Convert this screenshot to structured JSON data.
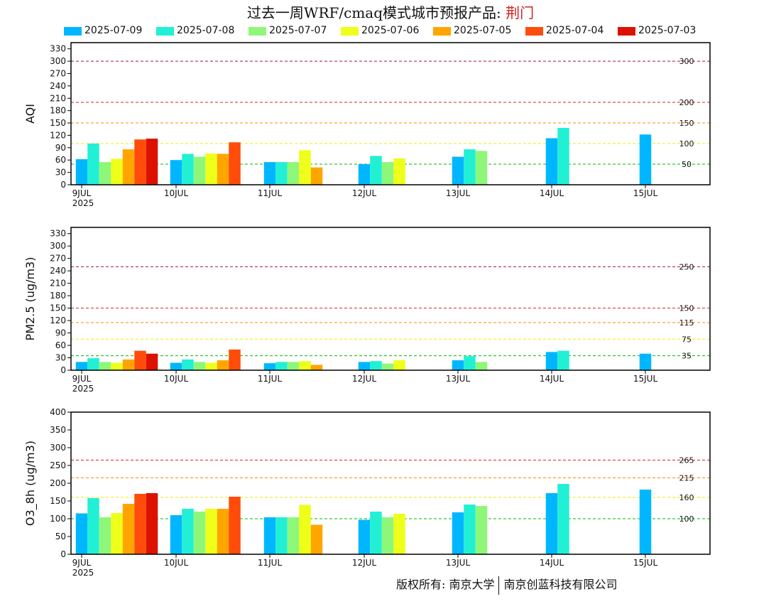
{
  "title": {
    "main": "过去一周WRF/cmaq模式城市预报产品: ",
    "city": "荆门"
  },
  "legend": [
    {
      "label": "2025-07-09",
      "color": "#00b7ff"
    },
    {
      "label": "2025-07-08",
      "color": "#22f0d4"
    },
    {
      "label": "2025-07-07",
      "color": "#8ef77a"
    },
    {
      "label": "2025-07-06",
      "color": "#eeff1a"
    },
    {
      "label": "2025-07-05",
      "color": "#ffa500"
    },
    {
      "label": "2025-07-04",
      "color": "#ff4c0a"
    },
    {
      "label": "2025-07-03",
      "color": "#dd1100"
    }
  ],
  "copyright": {
    "left": "版权所有: 南京大学",
    "right": "南京创蓝科技有限公司"
  },
  "chart_data": [
    {
      "type": "bar",
      "ylabel": "AQI",
      "ylim": [
        0,
        345
      ],
      "yticks": [
        0,
        30,
        60,
        90,
        120,
        150,
        180,
        210,
        240,
        270,
        300,
        330
      ],
      "categories": [
        "9JUL",
        "10JUL",
        "11JUL",
        "12JUL",
        "13JUL",
        "14JUL",
        "15JUL"
      ],
      "year_label": "2025",
      "thresholds": [
        {
          "value": 300,
          "label": "300",
          "color": "#aa1144"
        },
        {
          "value": 200,
          "label": "200",
          "color": "#dd2222"
        },
        {
          "value": 150,
          "label": "150",
          "color": "#ff8800"
        },
        {
          "value": 100,
          "label": "100",
          "color": "#eeee00"
        },
        {
          "value": 50,
          "label": "50",
          "color": "#00bb00"
        }
      ],
      "series": [
        {
          "name": "2025-07-09",
          "values": [
            62,
            60,
            55,
            50,
            68,
            113,
            122
          ]
        },
        {
          "name": "2025-07-08",
          "values": [
            100,
            75,
            55,
            70,
            86,
            138,
            null
          ]
        },
        {
          "name": "2025-07-07",
          "values": [
            55,
            68,
            55,
            55,
            82,
            null,
            null
          ]
        },
        {
          "name": "2025-07-06",
          "values": [
            63,
            76,
            84,
            64,
            null,
            null,
            null
          ]
        },
        {
          "name": "2025-07-05",
          "values": [
            86,
            75,
            42,
            null,
            null,
            null,
            null
          ]
        },
        {
          "name": "2025-07-04",
          "values": [
            110,
            103,
            null,
            null,
            null,
            null,
            null
          ]
        },
        {
          "name": "2025-07-03",
          "values": [
            112,
            null,
            null,
            null,
            null,
            null,
            null
          ]
        }
      ]
    },
    {
      "type": "bar",
      "ylabel": "PM2.5 (ug/m3)",
      "ylim": [
        0,
        345
      ],
      "yticks": [
        0,
        30,
        60,
        90,
        120,
        150,
        180,
        210,
        240,
        270,
        300,
        330
      ],
      "categories": [
        "9JUL",
        "10JUL",
        "11JUL",
        "12JUL",
        "13JUL",
        "14JUL",
        "15JUL"
      ],
      "year_label": "2025",
      "thresholds": [
        {
          "value": 250,
          "label": "250",
          "color": "#aa1144"
        },
        {
          "value": 150,
          "label": "150",
          "color": "#dd2222"
        },
        {
          "value": 115,
          "label": "115",
          "color": "#ff8800"
        },
        {
          "value": 75,
          "label": "75",
          "color": "#eeee00"
        },
        {
          "value": 35,
          "label": "35",
          "color": "#00bb00"
        }
      ],
      "series": [
        {
          "name": "2025-07-09",
          "values": [
            20,
            18,
            17,
            20,
            24,
            44,
            40
          ]
        },
        {
          "name": "2025-07-08",
          "values": [
            29,
            26,
            20,
            22,
            34,
            47,
            null
          ]
        },
        {
          "name": "2025-07-07",
          "values": [
            20,
            20,
            20,
            16,
            20,
            null,
            null
          ]
        },
        {
          "name": "2025-07-06",
          "values": [
            18,
            18,
            22,
            24,
            null,
            null,
            null
          ]
        },
        {
          "name": "2025-07-05",
          "values": [
            26,
            24,
            13,
            null,
            null,
            null,
            null
          ]
        },
        {
          "name": "2025-07-04",
          "values": [
            47,
            50,
            null,
            null,
            null,
            null,
            null
          ]
        },
        {
          "name": "2025-07-03",
          "values": [
            40,
            null,
            null,
            null,
            null,
            null,
            null
          ]
        }
      ]
    },
    {
      "type": "bar",
      "ylabel": "O3_8h (ug/m3)",
      "ylim": [
        0,
        400
      ],
      "yticks": [
        0,
        50,
        100,
        150,
        200,
        250,
        300,
        350,
        400
      ],
      "categories": [
        "9JUL",
        "10JUL",
        "11JUL",
        "12JUL",
        "13JUL",
        "14JUL",
        "15JUL"
      ],
      "year_label": "2025",
      "thresholds": [
        {
          "value": 265,
          "label": "265",
          "color": "#dd2222"
        },
        {
          "value": 215,
          "label": "215",
          "color": "#ff8800"
        },
        {
          "value": 160,
          "label": "160",
          "color": "#eeee00"
        },
        {
          "value": 100,
          "label": "100",
          "color": "#00bb00"
        }
      ],
      "series": [
        {
          "name": "2025-07-09",
          "values": [
            115,
            110,
            104,
            97,
            118,
            172,
            182
          ]
        },
        {
          "name": "2025-07-08",
          "values": [
            158,
            128,
            104,
            120,
            140,
            198,
            null
          ]
        },
        {
          "name": "2025-07-07",
          "values": [
            104,
            120,
            104,
            104,
            136,
            null,
            null
          ]
        },
        {
          "name": "2025-07-06",
          "values": [
            116,
            128,
            139,
            114,
            null,
            null,
            null
          ]
        },
        {
          "name": "2025-07-05",
          "values": [
            142,
            128,
            83,
            null,
            null,
            null,
            null
          ]
        },
        {
          "name": "2025-07-04",
          "values": [
            170,
            162,
            null,
            null,
            null,
            null,
            null
          ]
        },
        {
          "name": "2025-07-03",
          "values": [
            172,
            null,
            null,
            null,
            null,
            null,
            null
          ]
        }
      ]
    }
  ]
}
